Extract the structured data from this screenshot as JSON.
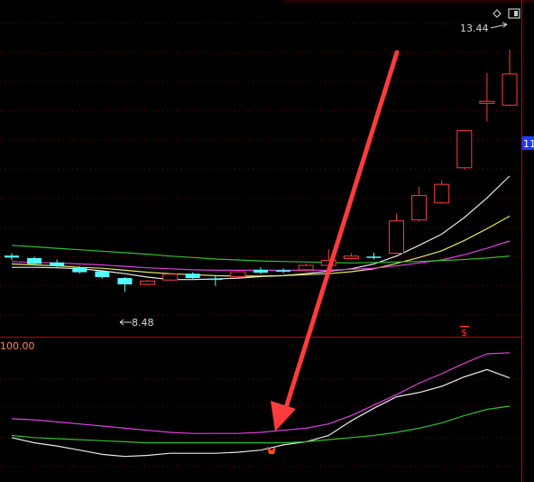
{
  "colors": {
    "background": "#000000",
    "grid": "#7a0000",
    "axis": "#c00000",
    "up_candle": "#ff3c3c",
    "down_candle": "#54ffff",
    "ma_white": "#e8e8e8",
    "ma_yellow": "#e8e860",
    "ma_magenta": "#e040e0",
    "ma_green": "#30c030",
    "label_text": "#d8d8d8",
    "price_tag_bg": "#1a3cff",
    "price_tag_text": "#ffffff",
    "indicator_value_text": "#ff8c5a",
    "signal_marker": "#ff3030",
    "arrow": "#ff3b3b"
  },
  "labels": {
    "high_price": "13.44",
    "low_price": "8.48",
    "right_axis_tag": "11",
    "indicator_level": "100.00",
    "signal_glyph": "$"
  },
  "icons": {
    "diamond": "diamond-icon",
    "restore": "restore-window-icon"
  },
  "chart_data": {
    "type": "candlestick",
    "title": "",
    "price_ylim": [
      7.8,
      13.9
    ],
    "x": [
      1,
      2,
      3,
      4,
      5,
      6,
      7,
      8,
      9,
      10,
      11,
      12,
      13,
      14,
      15,
      16,
      17,
      18,
      19,
      20,
      21,
      22,
      23
    ],
    "candles": [
      {
        "open": 9.22,
        "close": 9.18,
        "high": 9.27,
        "low": 9.13
      },
      {
        "open": 9.17,
        "close": 9.05,
        "high": 9.2,
        "low": 9.02
      },
      {
        "open": 9.08,
        "close": 9.01,
        "high": 9.14,
        "low": 8.98
      },
      {
        "open": 8.97,
        "close": 8.88,
        "high": 9.0,
        "low": 8.85
      },
      {
        "open": 8.9,
        "close": 8.78,
        "high": 8.92,
        "low": 8.75
      },
      {
        "open": 8.76,
        "close": 8.63,
        "high": 8.78,
        "low": 8.48
      },
      {
        "open": 8.63,
        "close": 8.7,
        "high": 8.72,
        "low": 8.61
      },
      {
        "open": 8.72,
        "close": 8.84,
        "high": 8.86,
        "low": 8.7
      },
      {
        "open": 8.85,
        "close": 8.76,
        "high": 8.88,
        "low": 8.74
      },
      {
        "open": 8.75,
        "close": 8.73,
        "high": 8.8,
        "low": 8.6
      },
      {
        "open": 8.79,
        "close": 8.89,
        "high": 8.92,
        "low": 8.77
      },
      {
        "open": 8.93,
        "close": 8.87,
        "high": 8.98,
        "low": 8.84
      },
      {
        "open": 8.92,
        "close": 8.89,
        "high": 8.96,
        "low": 8.86
      },
      {
        "open": 8.93,
        "close": 9.02,
        "high": 9.05,
        "low": 8.88
      },
      {
        "open": 9.02,
        "close": 9.12,
        "high": 9.35,
        "low": 9.0
      },
      {
        "open": 9.16,
        "close": 9.21,
        "high": 9.27,
        "low": 9.14
      },
      {
        "open": 9.2,
        "close": 9.18,
        "high": 9.28,
        "low": 9.14
      },
      {
        "open": 9.27,
        "close": 9.93,
        "high": 10.08,
        "low": 9.25
      },
      {
        "open": 9.95,
        "close": 10.45,
        "high": 10.63,
        "low": 9.92
      },
      {
        "open": 10.3,
        "close": 10.68,
        "high": 10.76,
        "low": 10.28
      },
      {
        "open": 11.02,
        "close": 11.78,
        "high": 11.79,
        "low": 10.98
      },
      {
        "open": 12.34,
        "close": 12.38,
        "high": 12.96,
        "low": 11.97
      },
      {
        "open": 12.3,
        "close": 12.94,
        "high": 13.44,
        "low": 12.28
      }
    ],
    "ma_series": [
      {
        "color": "#e8e8e8",
        "values": [
          8.98,
          8.98,
          8.97,
          8.95,
          8.91,
          8.85,
          8.78,
          8.73,
          8.73,
          8.74,
          8.76,
          8.79,
          8.81,
          8.85,
          8.9,
          8.95,
          9.05,
          9.21,
          9.43,
          9.66,
          10.0,
          10.4,
          10.85
        ]
      },
      {
        "color": "#e8e860",
        "values": [
          9.05,
          9.03,
          9.01,
          8.98,
          8.96,
          8.92,
          8.88,
          8.85,
          8.83,
          8.81,
          8.8,
          8.8,
          8.81,
          8.83,
          8.85,
          8.89,
          8.95,
          9.06,
          9.18,
          9.32,
          9.53,
          9.77,
          10.03
        ]
      },
      {
        "color": "#e040e0",
        "values": [
          9.1,
          9.08,
          9.07,
          9.05,
          9.03,
          9.0,
          8.97,
          8.95,
          8.93,
          8.92,
          8.92,
          8.92,
          8.92,
          8.92,
          8.92,
          8.94,
          8.96,
          9.01,
          9.07,
          9.13,
          9.24,
          9.37,
          9.52
        ]
      },
      {
        "color": "#30c030",
        "values": [
          9.43,
          9.4,
          9.37,
          9.34,
          9.31,
          9.28,
          9.25,
          9.21,
          9.18,
          9.15,
          9.13,
          9.11,
          9.1,
          9.09,
          9.08,
          9.07,
          9.08,
          9.09,
          9.1,
          9.12,
          9.14,
          9.17,
          9.21
        ]
      }
    ],
    "indicator": {
      "level_label": "100.00",
      "signal_at_x": 13,
      "signal_after_x": 22,
      "lines": [
        {
          "color": "#e040e0",
          "values": [
            38,
            37,
            35,
            33,
            31,
            29,
            27,
            25,
            24,
            24,
            24,
            25,
            27,
            29,
            33,
            41,
            51,
            61,
            72,
            81,
            91,
            100,
            101
          ]
        },
        {
          "color": "#e8e8e8",
          "values": [
            20,
            15,
            12,
            8,
            4,
            2,
            3,
            5,
            5,
            5,
            6,
            8,
            13,
            16,
            22,
            36,
            48,
            59,
            63,
            69,
            78,
            85,
            77
          ]
        },
        {
          "color": "#30c030",
          "values": [
            22,
            20,
            19,
            18,
            17,
            16,
            15,
            15,
            15,
            15,
            15,
            15,
            15,
            16,
            18,
            20,
            22,
            25,
            29,
            34,
            41,
            47,
            50
          ]
        }
      ]
    }
  }
}
